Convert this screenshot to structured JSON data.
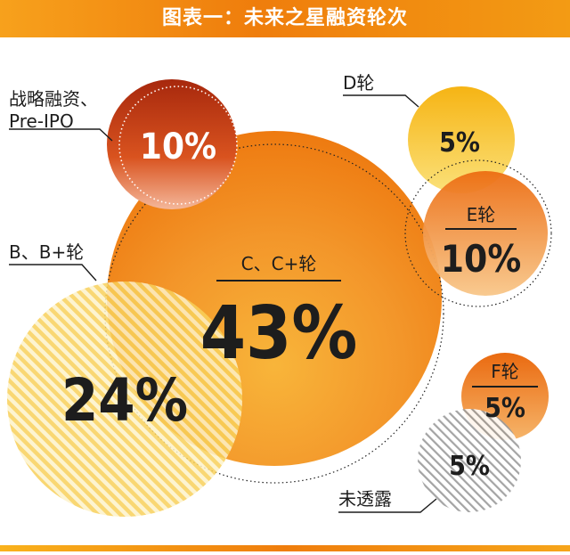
{
  "banner": {
    "title": "图表一：未来之星融资轮次"
  },
  "chart_data": {
    "type": "bubble",
    "title": "图表一：未来之星融资轮次",
    "unit": "%",
    "items": [
      {
        "label": "战略融资、Pre-IPO",
        "display": "10%",
        "value": 10
      },
      {
        "label": "B、B+轮",
        "display": "24%",
        "value": 24
      },
      {
        "label": "C、C+轮",
        "display": "43%",
        "value": 43
      },
      {
        "label": "D轮",
        "display": "5%",
        "value": 5
      },
      {
        "label": "E轮",
        "display": "10%",
        "value": 10
      },
      {
        "label": "F轮",
        "display": "5%",
        "value": 5
      },
      {
        "label": "未透露",
        "display": "5%",
        "value": 5
      }
    ]
  },
  "labels": {
    "strategic_line1": "战略融资、",
    "strategic_line2": "Pre-IPO",
    "b_round": "B、B+轮",
    "c_round": "C、C+轮",
    "d_round": "D轮",
    "e_round": "E轮",
    "f_round": "F轮",
    "undisclosed": "未透露"
  },
  "colors": {
    "orange": "#ef7d0c",
    "orange_light": "#f6a51a",
    "yellow": "#f9c31a",
    "red_brown": "#b8320f",
    "stripe_yellow": "#f8d05a",
    "stripe_gray": "#9a9a9a"
  }
}
